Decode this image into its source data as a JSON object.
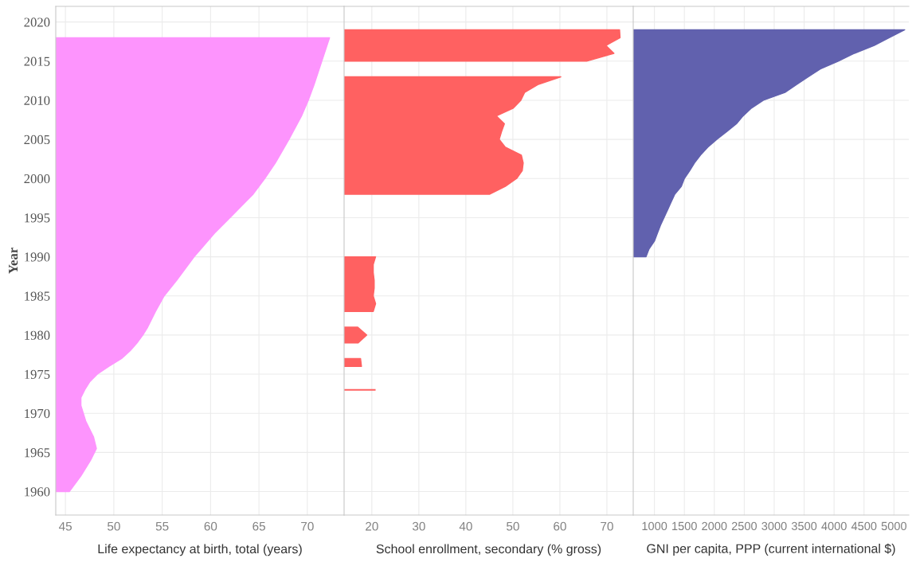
{
  "chart_data": [
    {
      "type": "area",
      "orientation": "horizontal",
      "xlabel": "Life expectancy at birth, total (years)",
      "ylabel": "Year",
      "color": "#fd94fd",
      "x": [
        1960,
        1962,
        1964,
        1965.5,
        1967,
        1969,
        1971,
        1972,
        1973,
        1974,
        1975,
        1976,
        1977,
        1978,
        1979,
        1980,
        1981,
        1983,
        1985,
        1987,
        1990,
        1993,
        1995,
        1997,
        1998,
        2000,
        2002,
        2005,
        2008,
        2010,
        2012,
        2015,
        2018
      ],
      "values": [
        45.4,
        46.6,
        47.6,
        48.2,
        47.9,
        47.1,
        46.6,
        46.6,
        47.0,
        47.5,
        48.3,
        49.5,
        50.8,
        51.7,
        52.4,
        53.0,
        53.5,
        54.3,
        55.2,
        56.5,
        58.3,
        60.4,
        62.0,
        63.6,
        64.4,
        65.6,
        66.7,
        68.1,
        69.4,
        70.1,
        70.7,
        71.5,
        72.3
      ],
      "xlim": [
        44,
        73.8
      ],
      "xticks": [
        45,
        50,
        55,
        60,
        65,
        70
      ],
      "ylim": [
        1957,
        2022
      ],
      "yticks": [
        1960,
        1965,
        1970,
        1975,
        1980,
        1985,
        1990,
        1995,
        2000,
        2005,
        2010,
        2015,
        2020
      ],
      "grid": true
    },
    {
      "type": "area",
      "orientation": "horizontal",
      "xlabel": "School enrollment, secondary (% gross)",
      "color": "#ff6161",
      "tick_labels": "x",
      "x": [
        1973,
        1974,
        1976,
        1977,
        1978,
        1979,
        1980,
        1981,
        1982,
        1983,
        1984,
        1985,
        1986,
        1987,
        1988,
        1989,
        1990,
        1991,
        1998,
        1999,
        2000,
        2001,
        2002,
        2003,
        2004,
        2005,
        2006,
        2007,
        2008,
        2009,
        2010,
        2011,
        2012,
        2013,
        2014,
        2015,
        2016,
        2017,
        2018,
        2019
      ],
      "values": [
        20.8,
        null,
        17.8,
        17.6,
        null,
        17.1,
        18.9,
        17.0,
        null,
        20.3,
        20.8,
        20.3,
        20.5,
        20.5,
        20.3,
        20.3,
        20.8,
        null,
        45.1,
        48.4,
        50.8,
        52.0,
        52.2,
        51.8,
        48.4,
        47.1,
        47.6,
        48.2,
        46.5,
        50.1,
        51.7,
        52.5,
        55.3,
        60.2,
        null,
        65.7,
        71.5,
        69.8,
        72.8,
        72.7
      ],
      "xlim": [
        14.1,
        75.6
      ],
      "xticks": [
        20,
        30,
        40,
        50,
        60,
        70
      ],
      "ylim": [
        1957,
        2022
      ],
      "yticks": [
        1960,
        1965,
        1970,
        1975,
        1980,
        1985,
        1990,
        1995,
        2000,
        2005,
        2010,
        2015,
        2020
      ],
      "grid": true
    },
    {
      "type": "area",
      "orientation": "horizontal",
      "xlabel": "GNI per capita, PPP (current international $)",
      "color": "#6161ae",
      "tick_labels": "x",
      "x": [
        1990,
        1991,
        1992,
        1993,
        1994,
        1995,
        1996,
        1997,
        1998,
        1999,
        2000,
        2001,
        2002,
        2003,
        2004,
        2005,
        2006,
        2007,
        2008,
        2009,
        2010,
        2011,
        2012,
        2013,
        2014,
        2015,
        2016,
        2017,
        2018,
        2019
      ],
      "values": [
        860,
        910,
        1000,
        1050,
        1100,
        1160,
        1220,
        1280,
        1340,
        1450,
        1500,
        1590,
        1670,
        1770,
        1890,
        2040,
        2210,
        2370,
        2480,
        2620,
        2820,
        3180,
        3370,
        3570,
        3770,
        4070,
        4340,
        4670,
        4920,
        5180
      ],
      "xlim": [
        646,
        5248
      ],
      "xticks": [
        1000,
        1500,
        2000,
        2500,
        3000,
        3500,
        4000,
        4500,
        5000
      ],
      "ylim": [
        1957,
        2022
      ],
      "yticks": [
        1960,
        1965,
        1970,
        1975,
        1980,
        1985,
        1990,
        1995,
        2000,
        2005,
        2010,
        2015,
        2020
      ],
      "grid": true
    }
  ]
}
